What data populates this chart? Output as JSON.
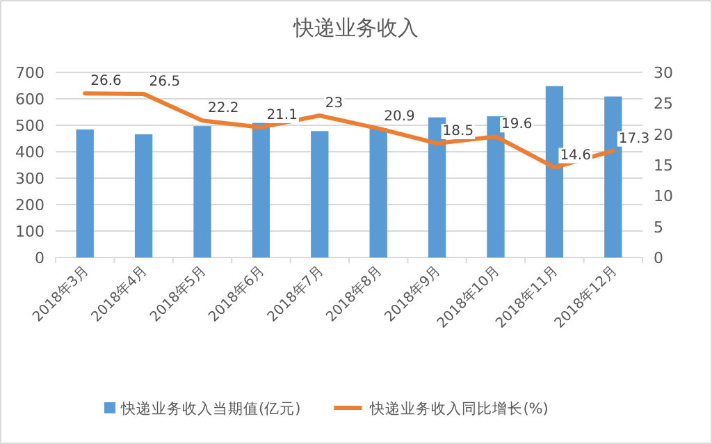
{
  "chart_data": {
    "type": "bar",
    "title": "快递业务收入",
    "categories": [
      "2018年3月",
      "2018年4月",
      "2018年5月",
      "2018年6月",
      "2018年7月",
      "2018年8月",
      "2018年9月",
      "2018年10月",
      "2018年11月",
      "2018年12月"
    ],
    "series": [
      {
        "name": "快递业务收入当期值(亿元)",
        "color": "#5b9bd5",
        "values": [
          484,
          466,
          497,
          509,
          478,
          489,
          530,
          534,
          648,
          609
        ]
      },
      {
        "name": "快递业务收入同比增长(%)",
        "type": "line",
        "axis": "y2",
        "color": "#ed7d31",
        "values": [
          26.6,
          26.5,
          22.2,
          21.1,
          23,
          20.9,
          18.5,
          19.6,
          14.6,
          17.3
        ],
        "value_labels": [
          "26.6",
          "26.5",
          "22.2",
          "21.1",
          "23",
          "20.9",
          "18.5",
          "19.6",
          "14.6",
          "17.3"
        ]
      }
    ],
    "ylim": [
      0,
      700
    ],
    "yticks": [
      0,
      100,
      200,
      300,
      400,
      500,
      600,
      700
    ],
    "y2lim": [
      0,
      30
    ],
    "y2ticks": [
      0,
      5,
      10,
      15,
      20,
      25,
      30
    ],
    "grid": "y",
    "legend": "bottom",
    "marker": "none",
    "line_style": "solid"
  }
}
